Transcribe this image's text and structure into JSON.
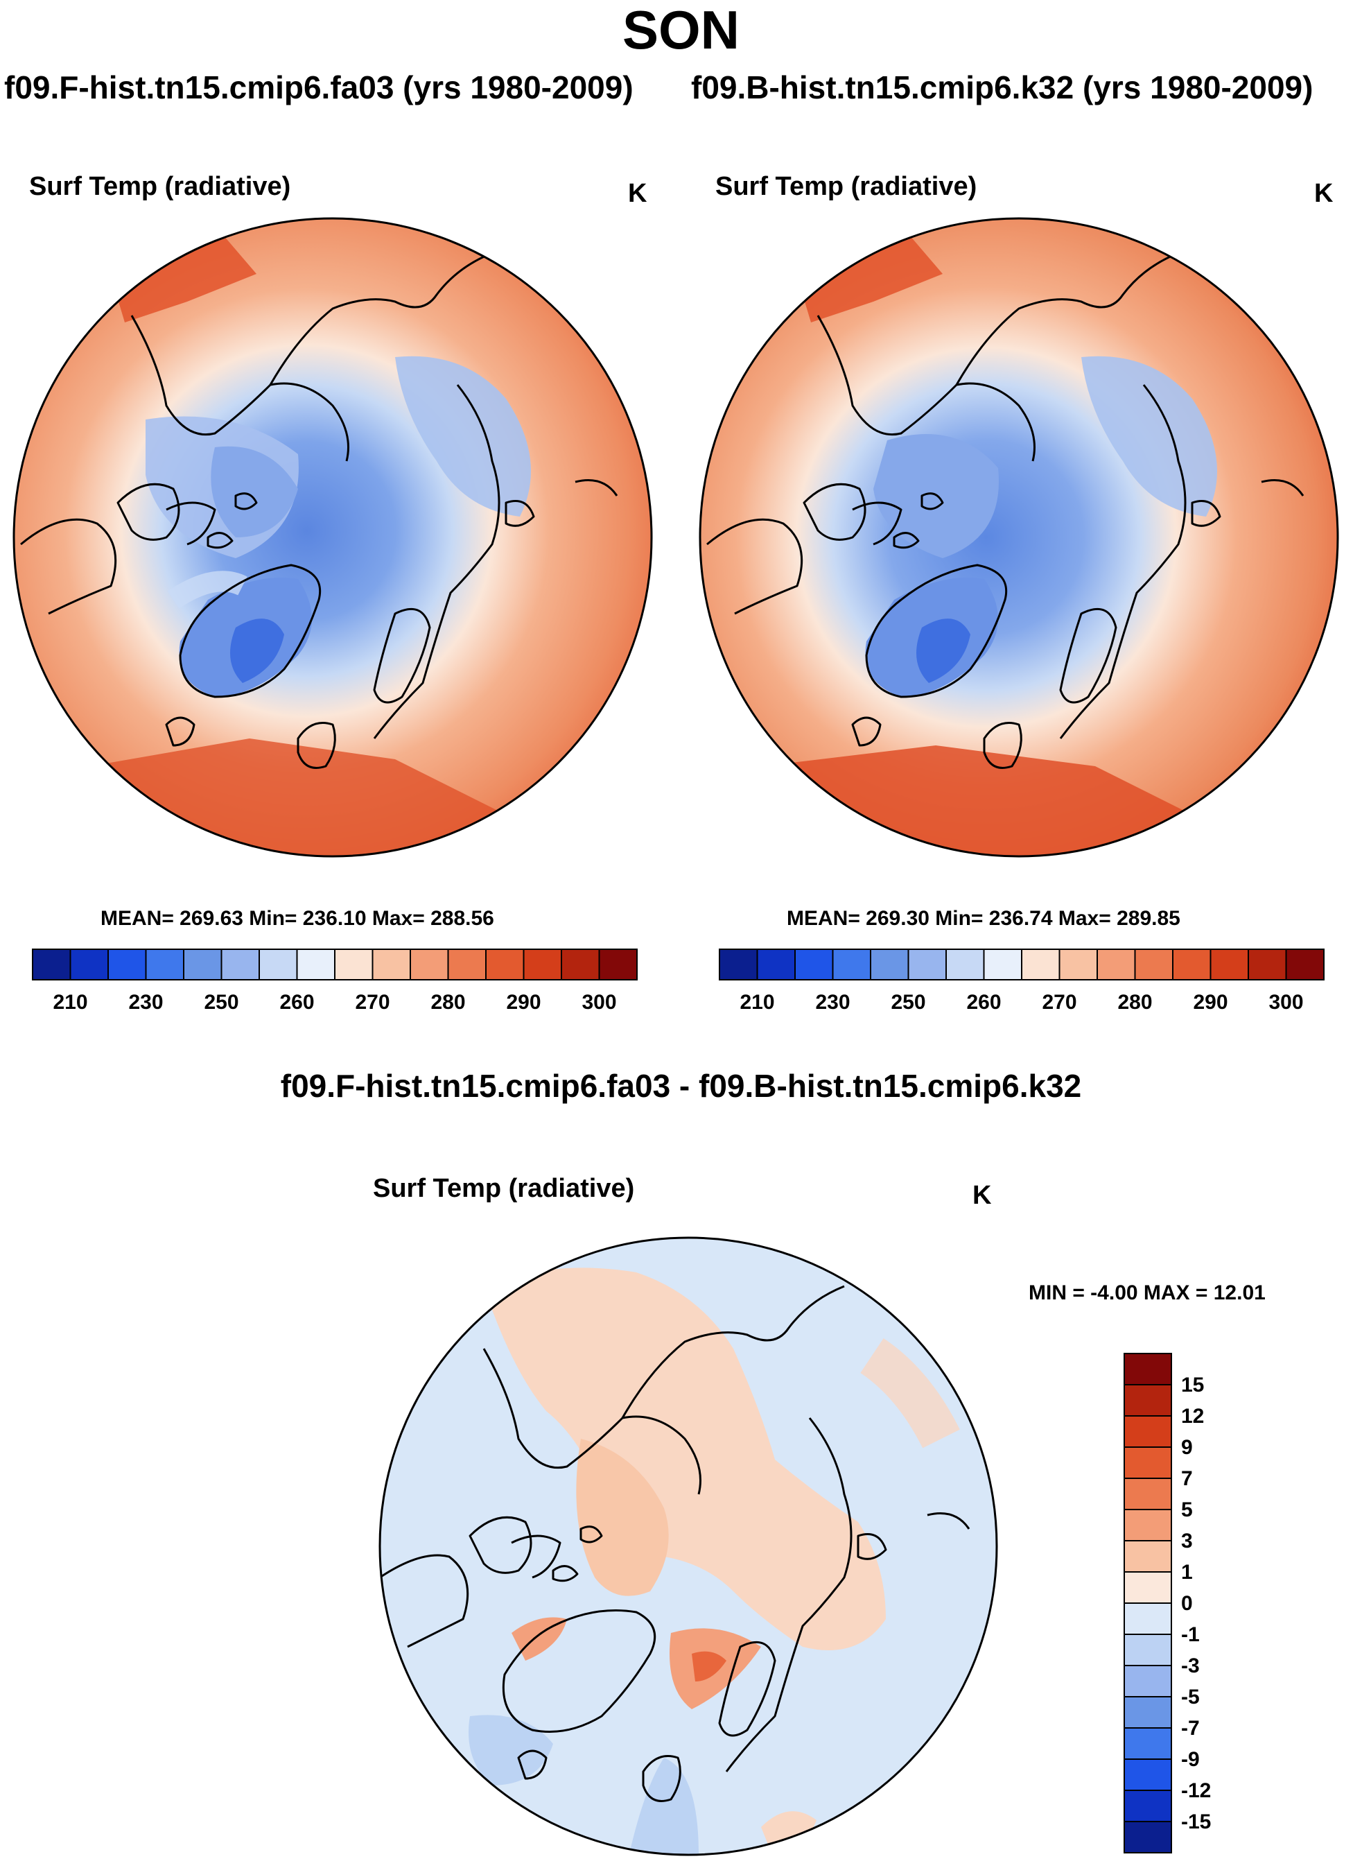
{
  "season": "SON",
  "left_panel": {
    "case_title": "f09.F-hist.tn15.cmip6.fa03 (yrs 1980-2009)",
    "variable": "Surf Temp (radiative)",
    "units": "K",
    "stats": "MEAN= 269.63  Min= 236.10  Max= 288.56"
  },
  "right_panel": {
    "case_title": "f09.B-hist.tn15.cmip6.k32 (yrs 1980-2009)",
    "variable": "Surf Temp (radiative)",
    "units": "K",
    "stats": "MEAN= 269.30  Min= 236.74  Max= 289.85"
  },
  "diff_panel": {
    "header": "f09.F-hist.tn15.cmip6.fa03 - f09.B-hist.tn15.cmip6.k32",
    "variable": "Surf Temp (radiative)",
    "units": "K",
    "stats": "MIN =  -4.00 MAX =  12.01"
  },
  "chart_data": [
    {
      "type": "contour-map",
      "title": "Surf Temp (radiative)",
      "case": "f09.F-hist.tn15.cmip6.fa03 (yrs 1980-2009)",
      "units": "K",
      "projection": "north polar stereographic",
      "mean": 269.63,
      "min": 236.1,
      "max": 288.56,
      "colorbar_tick_labels": [
        "210",
        "230",
        "250",
        "260",
        "270",
        "280",
        "290",
        "300"
      ],
      "colorbar_colors": [
        "#0b1f8f",
        "#0f33c4",
        "#1f55e8",
        "#3f78ec",
        "#6a96e6",
        "#98b5ee",
        "#c7d9f5",
        "#e8f0fb",
        "#fbe3d3",
        "#f8c2a3",
        "#f39d77",
        "#ec7a4f",
        "#e35a2f",
        "#d43e1a",
        "#b3240e",
        "#820808"
      ]
    },
    {
      "type": "contour-map",
      "title": "Surf Temp (radiative)",
      "case": "f09.B-hist.tn15.cmip6.k32 (yrs 1980-2009)",
      "units": "K",
      "projection": "north polar stereographic",
      "mean": 269.3,
      "min": 236.74,
      "max": 289.85,
      "colorbar_tick_labels": [
        "210",
        "230",
        "250",
        "260",
        "270",
        "280",
        "290",
        "300"
      ],
      "colorbar_colors": [
        "#0b1f8f",
        "#0f33c4",
        "#1f55e8",
        "#3f78ec",
        "#6a96e6",
        "#98b5ee",
        "#c7d9f5",
        "#e8f0fb",
        "#fbe3d3",
        "#f8c2a3",
        "#f39d77",
        "#ec7a4f",
        "#e35a2f",
        "#d43e1a",
        "#b3240e",
        "#820808"
      ]
    },
    {
      "type": "contour-map",
      "title": "Surf Temp (radiative)",
      "case": "f09.F-hist.tn15.cmip6.fa03 - f09.B-hist.tn15.cmip6.k32",
      "units": "K",
      "projection": "north polar stereographic",
      "min": -4.0,
      "max": 12.01,
      "colorbar_tick_labels": [
        "15",
        "12",
        "9",
        "7",
        "5",
        "3",
        "1",
        "0",
        "-1",
        "-3",
        "-5",
        "-7",
        "-9",
        "-12",
        "-15"
      ],
      "colorbar_colors": [
        "#820808",
        "#b3240e",
        "#d43e1a",
        "#e35a2f",
        "#ec7a4f",
        "#f39d77",
        "#f8c2a3",
        "#fbe8dc",
        "#dbe8f8",
        "#bcd2f3",
        "#98b5ee",
        "#6a96e6",
        "#3f78ec",
        "#1f55e8",
        "#0f33c4",
        "#0b1f8f"
      ]
    }
  ],
  "colors": {
    "land_outline": "#000000",
    "background": "#ffffff"
  }
}
